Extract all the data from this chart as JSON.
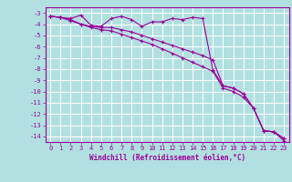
{
  "xlabel": "Windchill (Refroidissement éolien,°C)",
  "ylabel": "",
  "background_color": "#b2e0e0",
  "grid_color": "#ffffff",
  "line_color": "#990099",
  "xlim": [
    -0.5,
    23.5
  ],
  "ylim": [
    -14.5,
    -2.5
  ],
  "xticks": [
    0,
    1,
    2,
    3,
    4,
    5,
    6,
    7,
    8,
    9,
    10,
    11,
    12,
    13,
    14,
    15,
    16,
    17,
    18,
    19,
    20,
    21,
    22,
    23
  ],
  "yticks": [
    -3,
    -4,
    -5,
    -6,
    -7,
    -8,
    -9,
    -10,
    -11,
    -12,
    -13,
    -14
  ],
  "line1_x": [
    0,
    1,
    2,
    3,
    4,
    5,
    6,
    7,
    8,
    9,
    10,
    11,
    12,
    13,
    14,
    15,
    16,
    17,
    18,
    19,
    20,
    21,
    22,
    23
  ],
  "line1_y": [
    -3.3,
    -3.4,
    -3.5,
    -3.2,
    -4.1,
    -4.2,
    -3.5,
    -3.3,
    -3.6,
    -4.2,
    -3.8,
    -3.8,
    -3.5,
    -3.6,
    -3.4,
    -3.5,
    -8.1,
    -9.5,
    -9.7,
    -10.2,
    -11.5,
    -13.5,
    -13.6,
    -14.2
  ],
  "line2_x": [
    0,
    1,
    2,
    3,
    4,
    5,
    6,
    7,
    8,
    9,
    10,
    11,
    12,
    13,
    14,
    15,
    16,
    17,
    18,
    19,
    20,
    21,
    22,
    23
  ],
  "line2_y": [
    -3.3,
    -3.4,
    -3.6,
    -4.0,
    -4.2,
    -4.3,
    -4.3,
    -4.5,
    -4.7,
    -5.0,
    -5.3,
    -5.6,
    -5.9,
    -6.2,
    -6.5,
    -6.8,
    -7.2,
    -9.5,
    -9.7,
    -10.2,
    -11.5,
    -13.5,
    -13.6,
    -14.2
  ],
  "line3_x": [
    0,
    1,
    2,
    3,
    4,
    5,
    6,
    7,
    8,
    9,
    10,
    11,
    12,
    13,
    14,
    15,
    16,
    17,
    18,
    19,
    20,
    21,
    22,
    23
  ],
  "line3_y": [
    -3.3,
    -3.4,
    -3.7,
    -4.0,
    -4.3,
    -4.5,
    -4.6,
    -4.9,
    -5.2,
    -5.5,
    -5.8,
    -6.2,
    -6.6,
    -7.0,
    -7.4,
    -7.8,
    -8.2,
    -9.7,
    -10.0,
    -10.5,
    -11.5,
    -13.5,
    -13.6,
    -14.4
  ],
  "tick_fontsize": 5,
  "xlabel_fontsize": 5.5,
  "marker_size": 3,
  "line_width": 0.8
}
